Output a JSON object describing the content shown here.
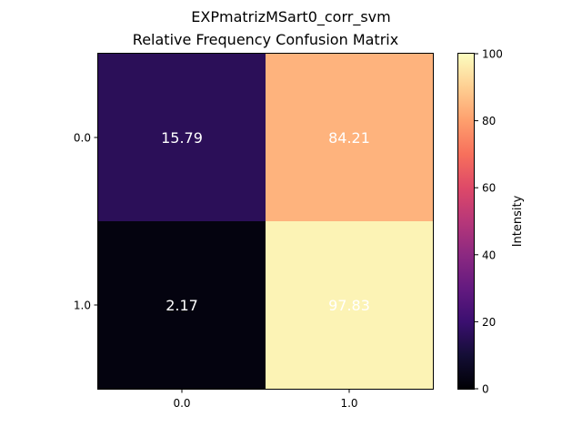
{
  "suptitle": "EXPmatrizMSart0_corr_svm",
  "chart_data": {
    "type": "heatmap",
    "title": "Relative Frequency Confusion Matrix",
    "row_labels": [
      "0.0",
      "1.0"
    ],
    "col_labels": [
      "0.0",
      "1.0"
    ],
    "values": [
      [
        15.79,
        84.21
      ],
      [
        2.17,
        97.83
      ]
    ],
    "cell_labels": [
      [
        "15.79",
        "84.21"
      ],
      [
        "2.17",
        "97.83"
      ]
    ],
    "colormap": "magma",
    "vmin": 0,
    "vmax": 100,
    "colorbar": {
      "label": "Intensity",
      "ticks": [
        0,
        20,
        40,
        60,
        80,
        100
      ],
      "tick_labels": [
        "0",
        "20",
        "40",
        "60",
        "80",
        "100"
      ]
    },
    "annotation_color": "#ffffff"
  }
}
